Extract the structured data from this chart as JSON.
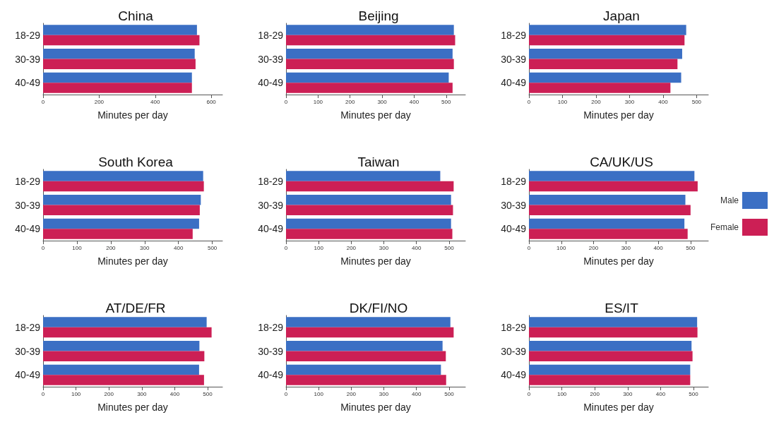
{
  "chart_data": [
    {
      "type": "bar",
      "orientation": "horizontal",
      "title": "China",
      "xlabel": "Minutes per day",
      "categories": [
        "18-29",
        "30-39",
        "40-49"
      ],
      "series": [
        {
          "color": "#3b6fc4",
          "values": [
            549,
            541,
            531
          ]
        },
        {
          "color": "#cc1f55",
          "values": [
            558,
            544,
            531
          ]
        }
      ],
      "xlim": [
        0,
        640
      ],
      "xticks": [
        0,
        200,
        400,
        600
      ],
      "legend": false,
      "grid": false
    },
    {
      "type": "bar",
      "orientation": "horizontal",
      "title": "Beijing",
      "xlabel": "Minutes per day",
      "categories": [
        "18-29",
        "30-39",
        "40-49"
      ],
      "series": [
        {
          "color": "#3b6fc4",
          "values": [
            524,
            520,
            508
          ]
        },
        {
          "color": "#cc1f55",
          "values": [
            528,
            524,
            520
          ]
        }
      ],
      "xlim": [
        0,
        560
      ],
      "xticks": [
        0,
        100,
        200,
        300,
        400,
        500
      ],
      "legend": false,
      "grid": false
    },
    {
      "type": "bar",
      "orientation": "horizontal",
      "title": "Japan",
      "xlabel": "Minutes per day",
      "categories": [
        "18-29",
        "30-39",
        "40-49"
      ],
      "series": [
        {
          "color": "#3b6fc4",
          "values": [
            469,
            457,
            454
          ]
        },
        {
          "color": "#cc1f55",
          "values": [
            464,
            443,
            422
          ]
        }
      ],
      "xlim": [
        0,
        535
      ],
      "xticks": [
        0,
        100,
        200,
        300,
        400,
        500
      ],
      "legend": false,
      "grid": false
    },
    {
      "type": "bar",
      "orientation": "horizontal",
      "title": "South Korea",
      "xlabel": "Minutes per day",
      "categories": [
        "18-29",
        "30-39",
        "40-49"
      ],
      "series": [
        {
          "color": "#3b6fc4",
          "values": [
            473,
            466,
            461
          ]
        },
        {
          "color": "#cc1f55",
          "values": [
            475,
            463,
            442
          ]
        }
      ],
      "xlim": [
        0,
        530
      ],
      "xticks": [
        0,
        100,
        200,
        300,
        400,
        500
      ],
      "legend": false,
      "grid": false
    },
    {
      "type": "bar",
      "orientation": "horizontal",
      "title": "Taiwan",
      "xlabel": "Minutes per day",
      "categories": [
        "18-29",
        "30-39",
        "40-49"
      ],
      "series": [
        {
          "color": "#3b6fc4",
          "values": [
            473,
            506,
            506
          ]
        },
        {
          "color": "#cc1f55",
          "values": [
            514,
            512,
            510
          ]
        }
      ],
      "xlim": [
        0,
        550
      ],
      "xticks": [
        0,
        100,
        200,
        300,
        400,
        500
      ],
      "legend": false,
      "grid": false
    },
    {
      "type": "bar",
      "orientation": "horizontal",
      "title": "CA/UK/US",
      "xlabel": "Minutes per day",
      "categories": [
        "18-29",
        "30-39",
        "40-49"
      ],
      "series": [
        {
          "name": "Male",
          "color": "#3b6fc4",
          "values": [
            512,
            484,
            481
          ]
        },
        {
          "name": "Female",
          "color": "#cc1f55",
          "values": [
            522,
            500,
            491
          ]
        }
      ],
      "xlim": [
        0,
        555
      ],
      "xticks": [
        0,
        100,
        200,
        300,
        400,
        500
      ],
      "legend": "right",
      "grid": false
    },
    {
      "type": "bar",
      "orientation": "horizontal",
      "title": "AT/DE/FR",
      "xlabel": "Minutes per day",
      "categories": [
        "18-29",
        "30-39",
        "40-49"
      ],
      "series": [
        {
          "color": "#3b6fc4",
          "values": [
            497,
            475,
            474
          ]
        },
        {
          "color": "#cc1f55",
          "values": [
            512,
            490,
            489
          ]
        }
      ],
      "xlim": [
        0,
        545
      ],
      "xticks": [
        0,
        100,
        200,
        300,
        400,
        500
      ],
      "legend": false,
      "grid": false
    },
    {
      "type": "bar",
      "orientation": "horizontal",
      "title": "DK/FI/NO",
      "xlabel": "Minutes per day",
      "categories": [
        "18-29",
        "30-39",
        "40-49"
      ],
      "series": [
        {
          "color": "#3b6fc4",
          "values": [
            504,
            480,
            475
          ]
        },
        {
          "color": "#cc1f55",
          "values": [
            514,
            490,
            491
          ]
        }
      ],
      "xlim": [
        0,
        550
      ],
      "xticks": [
        0,
        100,
        200,
        300,
        400,
        500
      ],
      "legend": false,
      "grid": false
    },
    {
      "type": "bar",
      "orientation": "horizontal",
      "title": "ES/IT",
      "xlabel": "Minutes per day",
      "categories": [
        "18-29",
        "30-39",
        "40-49"
      ],
      "series": [
        {
          "color": "#3b6fc4",
          "values": [
            511,
            494,
            490
          ]
        },
        {
          "color": "#cc1f55",
          "values": [
            512,
            497,
            490
          ]
        }
      ],
      "xlim": [
        0,
        545
      ],
      "xticks": [
        0,
        100,
        200,
        300,
        400,
        500
      ],
      "legend": false,
      "grid": false
    }
  ]
}
